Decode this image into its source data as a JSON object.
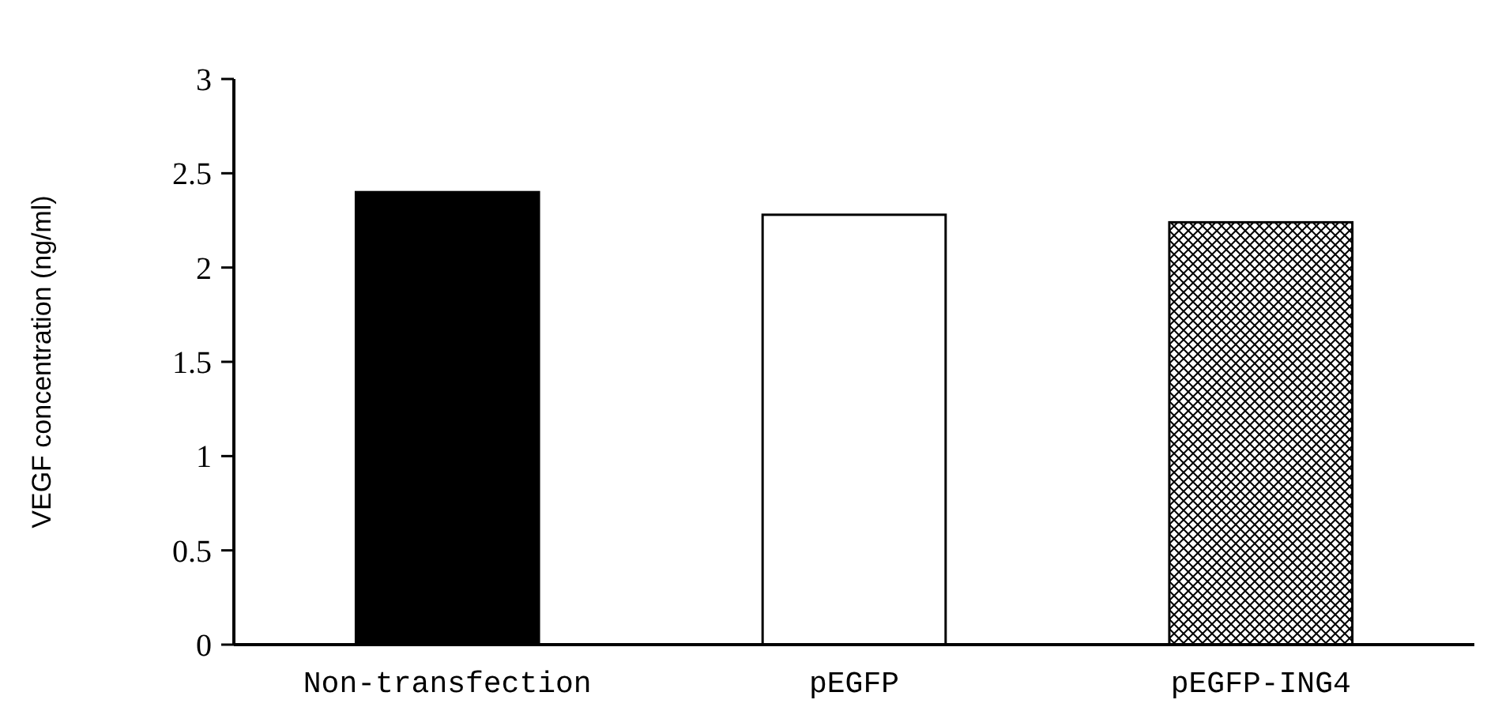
{
  "chart_data": {
    "type": "bar",
    "ylabel": "VEGF concentration (ng/ml)",
    "categories": [
      "Non-transfection",
      "pEGFP",
      "pEGFP-ING4"
    ],
    "values": [
      2.4,
      2.28,
      2.24
    ],
    "colors": [
      "#000000",
      "#ffffff",
      "#000000"
    ],
    "ylim": [
      0,
      3
    ],
    "yticks": [
      0,
      0.5,
      1,
      1.5,
      2,
      2.5,
      3
    ],
    "grid": false
  }
}
